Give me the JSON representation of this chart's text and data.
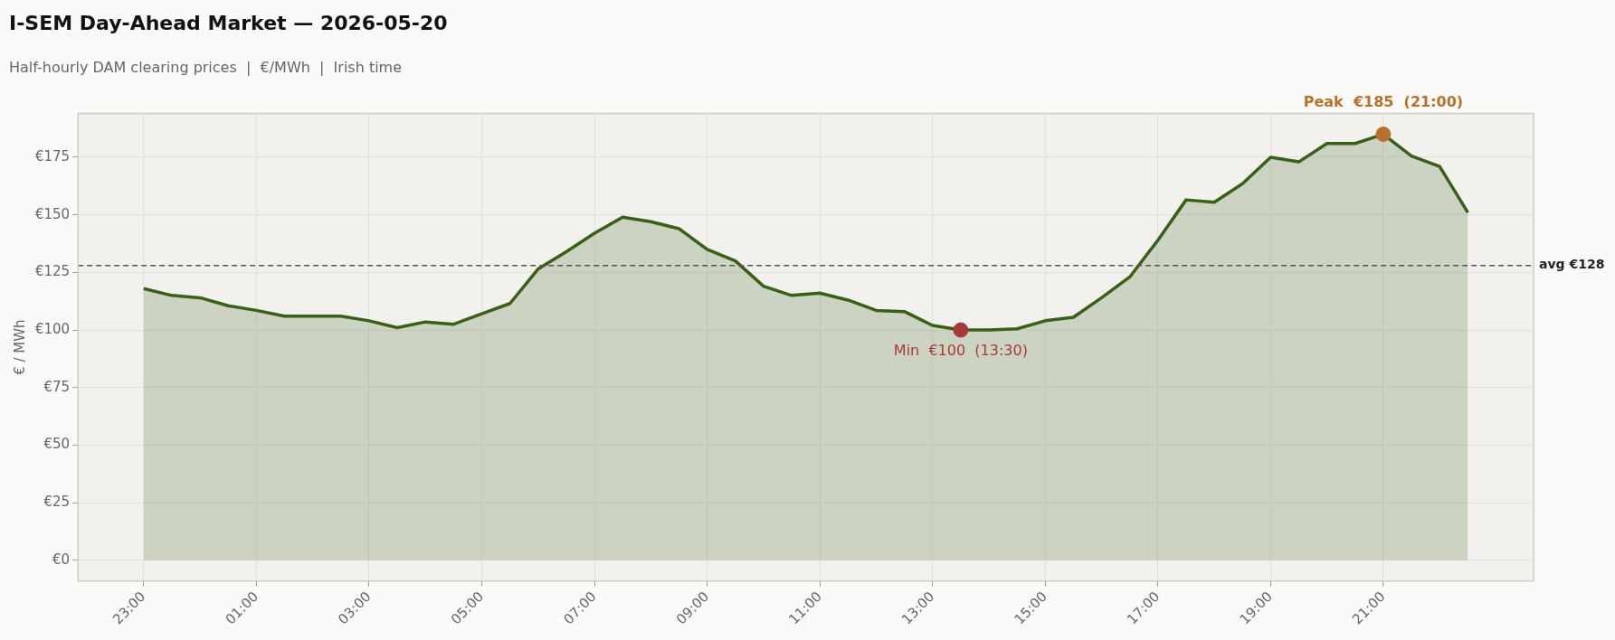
{
  "chart_data": {
    "type": "area",
    "title": "I-SEM Day-Ahead Market — 2026-05-20",
    "subtitle": "Half-hourly DAM clearing prices  |  €/MWh  |  Irish time",
    "ylabel": "€ / MWh",
    "xlim": [
      "2026-05-19T21:50",
      "2026-05-20T23:40"
    ],
    "ylim": [
      -9,
      194
    ],
    "xticks": [
      {
        "value": "2026-05-19T23:00",
        "label": "23:00"
      },
      {
        "value": "2026-05-20T01:00",
        "label": "01:00"
      },
      {
        "value": "2026-05-20T03:00",
        "label": "03:00"
      },
      {
        "value": "2026-05-20T05:00",
        "label": "05:00"
      },
      {
        "value": "2026-05-20T07:00",
        "label": "07:00"
      },
      {
        "value": "2026-05-20T09:00",
        "label": "09:00"
      },
      {
        "value": "2026-05-20T11:00",
        "label": "11:00"
      },
      {
        "value": "2026-05-20T13:00",
        "label": "13:00"
      },
      {
        "value": "2026-05-20T15:00",
        "label": "15:00"
      },
      {
        "value": "2026-05-20T17:00",
        "label": "17:00"
      },
      {
        "value": "2026-05-20T19:00",
        "label": "19:00"
      },
      {
        "value": "2026-05-20T21:00",
        "label": "21:00"
      }
    ],
    "yticks": [
      {
        "value": 0,
        "label": "€0"
      },
      {
        "value": 25,
        "label": "€25"
      },
      {
        "value": 50,
        "label": "€50"
      },
      {
        "value": 75,
        "label": "€75"
      },
      {
        "value": 100,
        "label": "€100"
      },
      {
        "value": 125,
        "label": "€125"
      },
      {
        "value": 150,
        "label": "€150"
      },
      {
        "value": 175,
        "label": "€175"
      }
    ],
    "x": [
      "2026-05-19T23:00",
      "2026-05-19T23:30",
      "2026-05-20T00:00",
      "2026-05-20T00:30",
      "2026-05-20T01:00",
      "2026-05-20T01:30",
      "2026-05-20T02:00",
      "2026-05-20T02:30",
      "2026-05-20T03:00",
      "2026-05-20T03:30",
      "2026-05-20T04:00",
      "2026-05-20T04:30",
      "2026-05-20T05:00",
      "2026-05-20T05:30",
      "2026-05-20T06:00",
      "2026-05-20T06:30",
      "2026-05-20T07:00",
      "2026-05-20T07:30",
      "2026-05-20T08:00",
      "2026-05-20T08:30",
      "2026-05-20T09:00",
      "2026-05-20T09:30",
      "2026-05-20T10:00",
      "2026-05-20T10:30",
      "2026-05-20T11:00",
      "2026-05-20T11:30",
      "2026-05-20T12:00",
      "2026-05-20T12:30",
      "2026-05-20T13:00",
      "2026-05-20T13:30",
      "2026-05-20T14:00",
      "2026-05-20T14:30",
      "2026-05-20T15:00",
      "2026-05-20T15:30",
      "2026-05-20T16:00",
      "2026-05-20T16:30",
      "2026-05-20T17:00",
      "2026-05-20T17:30",
      "2026-05-20T18:00",
      "2026-05-20T18:30",
      "2026-05-20T19:00",
      "2026-05-20T19:30",
      "2026-05-20T20:00",
      "2026-05-20T20:30",
      "2026-05-20T21:00",
      "2026-05-20T21:30",
      "2026-05-20T22:00",
      "2026-05-20T22:30"
    ],
    "series": [
      {
        "color": "#3a5f17",
        "values": [
          118,
          115,
          114,
          110.5,
          108.5,
          106,
          106,
          106,
          104,
          101,
          103.5,
          102.5,
          107,
          111.5,
          126.5,
          134,
          142,
          149,
          147,
          144,
          135,
          130,
          119,
          115,
          116,
          113,
          108.5,
          108,
          102,
          100,
          100,
          100.5,
          104,
          105.5,
          114,
          123,
          139,
          156.5,
          155.5,
          163.5,
          175,
          173,
          181,
          181,
          185,
          175.5,
          171,
          151
        ]
      },
      {
        "type": "scatter",
        "marker": "circle",
        "color": "#a63a3a",
        "x": [
          "2026-05-20T13:30"
        ],
        "values": [
          100
        ]
      },
      {
        "type": "scatter",
        "marker": "circle",
        "color": "#b8712b",
        "x": [
          "2026-05-20T21:00"
        ],
        "values": [
          185
        ]
      }
    ],
    "ref_lines": [
      {
        "axis": "y",
        "value": 128,
        "label": "avg €128",
        "color": "#555555",
        "line_style": "dashed"
      }
    ],
    "annotations": [
      {
        "text": "Min  €100  (13:30)",
        "x": "2026-05-20T13:30",
        "y": 100
      },
      {
        "text": "Peak  €185  (21:00)",
        "x": "2026-05-20T21:00",
        "y": 185
      }
    ],
    "grid": true,
    "marker": "none",
    "line_style": "solid",
    "legend": false
  }
}
